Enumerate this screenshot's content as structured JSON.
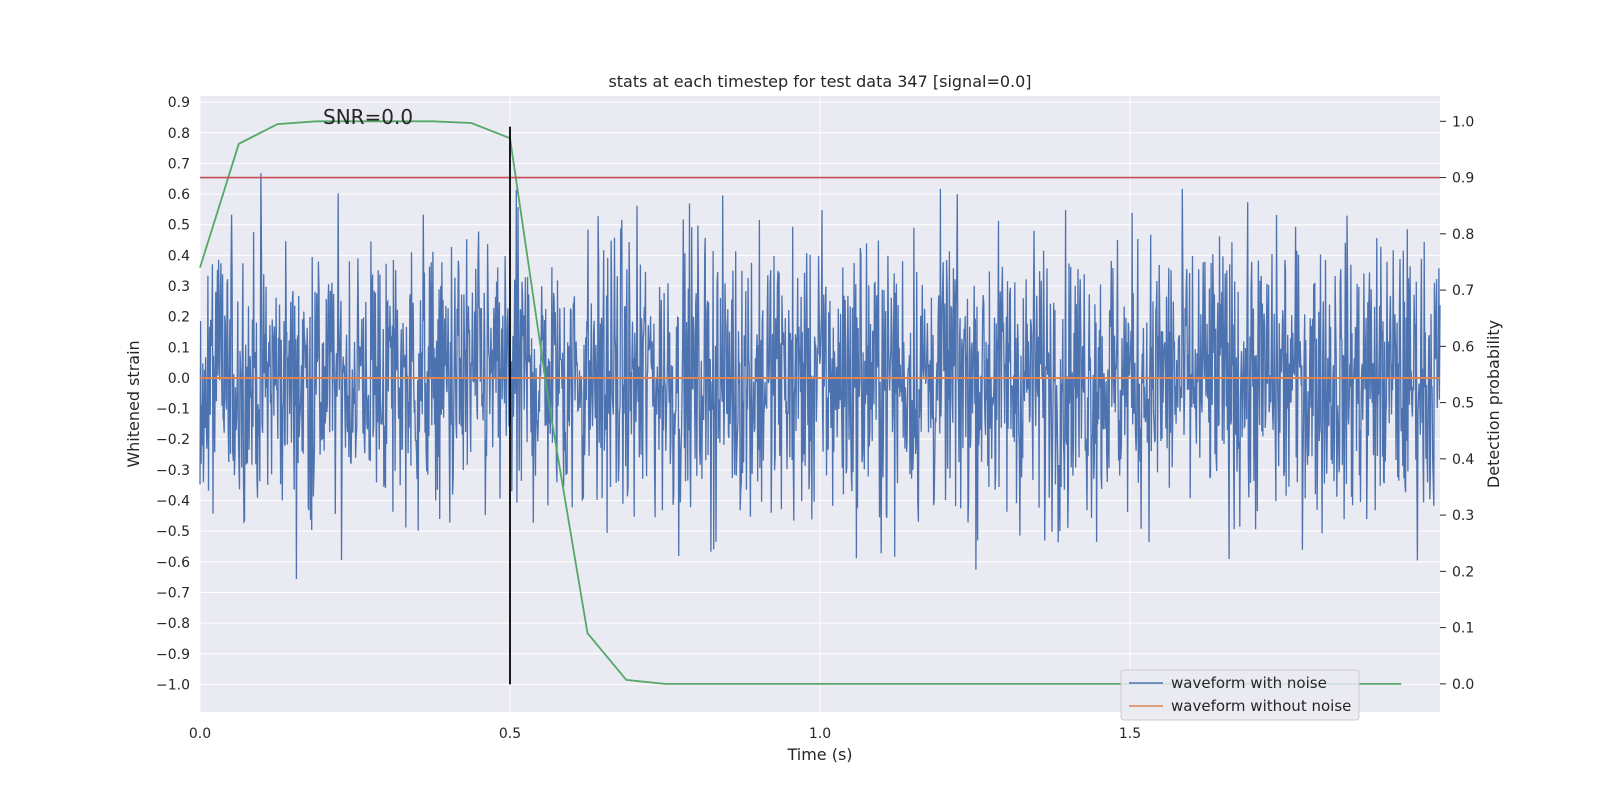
{
  "chart_data": {
    "type": "line",
    "title": "stats at each timestep for test data 347 [signal=0.0]",
    "xlabel": "Time (s)",
    "ylabel": "Whitened strain",
    "y2label": "Detection probability",
    "annotation": "SNR=0.0",
    "xlim": [
      0.0,
      2.0
    ],
    "ylim": [
      -1.09,
      0.92
    ],
    "y2lim": [
      -0.05,
      1.045
    ],
    "xticks": [
      0.0,
      0.5,
      1.0,
      1.5
    ],
    "xtick_labels": [
      "0.0",
      "0.5",
      "1.0",
      "1.5"
    ],
    "yticks": [
      0.9,
      0.8,
      0.7,
      0.6,
      0.5,
      0.4,
      0.3,
      0.2,
      0.1,
      0.0,
      -0.1,
      -0.2,
      -0.3,
      -0.4,
      -0.5,
      -0.6,
      -0.7,
      -0.8,
      -0.9,
      -1.0
    ],
    "ytick_labels": [
      "0.9",
      "0.8",
      "0.7",
      "0.6",
      "0.5",
      "0.4",
      "0.3",
      "0.2",
      "0.1",
      "0.0",
      "−0.1",
      "−0.2",
      "−0.3",
      "−0.4",
      "−0.5",
      "−0.6",
      "−0.7",
      "−0.8",
      "−0.9",
      "−1.0"
    ],
    "y2ticks": [
      1.0,
      0.9,
      0.8,
      0.7,
      0.6,
      0.5,
      0.4,
      0.3,
      0.2,
      0.1,
      0.0
    ],
    "y2tick_labels": [
      "1.0",
      "0.9",
      "0.8",
      "0.7",
      "0.6",
      "0.5",
      "0.4",
      "0.3",
      "0.2",
      "0.1",
      "0.0"
    ],
    "grid": true,
    "legend_position": "lower-right",
    "series": [
      {
        "name": "waveform with noise",
        "axis": "left",
        "color": "#4c72b0",
        "style": "dense noise, roughly within -0.85 to 0.85 over the full time range",
        "x_range": [
          0.0,
          2.0
        ],
        "approx_amplitude": 0.85
      },
      {
        "name": "waveform without noise",
        "axis": "left",
        "color": "#dd8452",
        "x": [
          0.0,
          2.0
        ],
        "y": [
          0.0,
          0.0
        ]
      },
      {
        "axis": "right",
        "color": "#55a868",
        "x": [
          0.0,
          0.0625,
          0.125,
          0.1875,
          0.25,
          0.3125,
          0.375,
          0.4375,
          0.5,
          0.5625,
          0.625,
          0.6875,
          0.75,
          0.8125,
          0.875,
          0.9375,
          1.0,
          1.0625,
          1.125,
          1.1875,
          1.25,
          1.3125,
          1.375,
          1.4375,
          1.5,
          1.5625,
          1.625,
          1.6875,
          1.75,
          1.8125,
          1.875,
          1.9375
        ],
        "y": [
          0.74,
          0.96,
          0.995,
          1.0,
          1.0,
          1.0,
          1.0,
          0.997,
          0.97,
          0.5,
          0.09,
          0.007,
          0.0,
          0.0,
          0.0,
          0.0,
          0.0,
          0.0,
          0.0,
          0.0,
          0.0,
          0.0,
          0.0,
          0.0,
          0.0,
          0.0,
          0.0,
          0.0,
          0.0,
          0.0,
          0.0,
          0.0
        ]
      },
      {
        "axis": "right",
        "color": "#c44e52",
        "x": [
          0.0,
          2.0
        ],
        "y": [
          0.9,
          0.9
        ]
      },
      {
        "axis": "left",
        "color": "#000000",
        "x": [
          0.5,
          0.5
        ],
        "y": [
          -1.0,
          0.82
        ]
      }
    ]
  }
}
